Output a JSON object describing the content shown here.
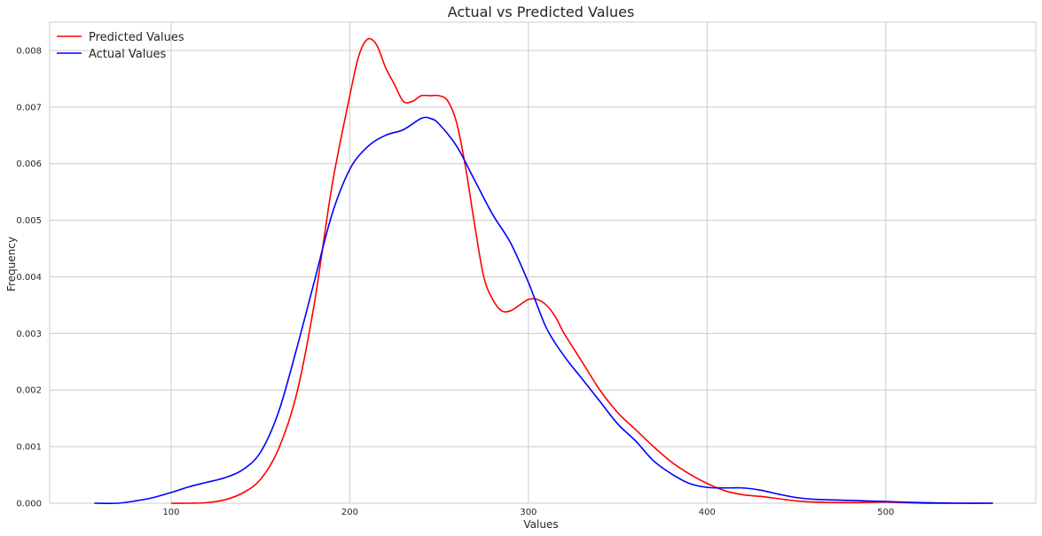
{
  "chart_data": {
    "type": "line",
    "title": "Actual vs Predicted Values",
    "xlabel": "Values",
    "ylabel": "Frequency",
    "xlim": [
      32,
      584
    ],
    "ylim": [
      0,
      0.0085
    ],
    "x_ticks": [
      100,
      200,
      300,
      400,
      500
    ],
    "y_ticks": [
      0.0,
      0.001,
      0.002,
      0.003,
      0.004,
      0.005,
      0.006,
      0.007,
      0.008
    ],
    "x_tick_labels": [
      "100",
      "200",
      "300",
      "400",
      "500"
    ],
    "y_tick_labels": [
      "0.000",
      "0.001",
      "0.002",
      "0.003",
      "0.004",
      "0.005",
      "0.006",
      "0.007",
      "0.008"
    ],
    "grid": true,
    "legend_position": "top-left",
    "series": [
      {
        "name": "Predicted Values",
        "color": "#ff0000",
        "points": [
          [
            100,
            0.0
          ],
          [
            110,
            0.0
          ],
          [
            120,
            1e-05
          ],
          [
            130,
            6e-05
          ],
          [
            140,
            0.00018
          ],
          [
            150,
            0.00042
          ],
          [
            160,
            0.00095
          ],
          [
            170,
            0.0019
          ],
          [
            180,
            0.0035
          ],
          [
            190,
            0.0056
          ],
          [
            200,
            0.0072
          ],
          [
            205,
            0.0079
          ],
          [
            210,
            0.0082
          ],
          [
            215,
            0.0081
          ],
          [
            220,
            0.0077
          ],
          [
            225,
            0.0074
          ],
          [
            230,
            0.0071
          ],
          [
            235,
            0.0071
          ],
          [
            240,
            0.0072
          ],
          [
            245,
            0.0072
          ],
          [
            250,
            0.0072
          ],
          [
            255,
            0.0071
          ],
          [
            260,
            0.0067
          ],
          [
            265,
            0.0059
          ],
          [
            270,
            0.0049
          ],
          [
            275,
            0.004
          ],
          [
            280,
            0.0036
          ],
          [
            285,
            0.0034
          ],
          [
            290,
            0.0034
          ],
          [
            295,
            0.0035
          ],
          [
            300,
            0.0036
          ],
          [
            305,
            0.0036
          ],
          [
            310,
            0.0035
          ],
          [
            315,
            0.0033
          ],
          [
            320,
            0.003
          ],
          [
            330,
            0.0025
          ],
          [
            340,
            0.002
          ],
          [
            350,
            0.0016
          ],
          [
            360,
            0.0013
          ],
          [
            370,
            0.001
          ],
          [
            380,
            0.00073
          ],
          [
            390,
            0.00052
          ],
          [
            400,
            0.00035
          ],
          [
            410,
            0.00022
          ],
          [
            420,
            0.00015
          ],
          [
            430,
            0.00012
          ],
          [
            440,
            8e-05
          ],
          [
            450,
            4e-05
          ],
          [
            460,
            2e-05
          ],
          [
            480,
            1e-05
          ],
          [
            500,
            2e-05
          ],
          [
            520,
            0.0
          ],
          [
            540,
            0.0
          ],
          [
            560,
            0.0
          ]
        ]
      },
      {
        "name": "Actual Values",
        "color": "#0000ff",
        "points": [
          [
            57,
            0.0
          ],
          [
            70,
            0.0
          ],
          [
            80,
            4e-05
          ],
          [
            90,
            0.0001
          ],
          [
            100,
            0.00019
          ],
          [
            110,
            0.00029
          ],
          [
            120,
            0.00037
          ],
          [
            130,
            0.00045
          ],
          [
            140,
            0.00059
          ],
          [
            150,
            0.0009
          ],
          [
            160,
            0.0016
          ],
          [
            170,
            0.0027
          ],
          [
            180,
            0.0039
          ],
          [
            190,
            0.0051
          ],
          [
            200,
            0.0059
          ],
          [
            210,
            0.0063
          ],
          [
            220,
            0.0065
          ],
          [
            230,
            0.0066
          ],
          [
            240,
            0.0068
          ],
          [
            245,
            0.0068
          ],
          [
            250,
            0.0067
          ],
          [
            260,
            0.0063
          ],
          [
            270,
            0.0057
          ],
          [
            280,
            0.0051
          ],
          [
            290,
            0.0046
          ],
          [
            300,
            0.0039
          ],
          [
            310,
            0.0031
          ],
          [
            320,
            0.0026
          ],
          [
            330,
            0.0022
          ],
          [
            340,
            0.0018
          ],
          [
            350,
            0.0014
          ],
          [
            360,
            0.0011
          ],
          [
            370,
            0.00075
          ],
          [
            380,
            0.00052
          ],
          [
            390,
            0.00035
          ],
          [
            400,
            0.00028
          ],
          [
            410,
            0.00027
          ],
          [
            420,
            0.00027
          ],
          [
            430,
            0.00023
          ],
          [
            440,
            0.00016
          ],
          [
            450,
            0.0001
          ],
          [
            460,
            7e-05
          ],
          [
            480,
            5e-05
          ],
          [
            500,
            3e-05
          ],
          [
            520,
            1e-05
          ],
          [
            540,
            0.0
          ],
          [
            560,
            0.0
          ]
        ]
      }
    ]
  }
}
